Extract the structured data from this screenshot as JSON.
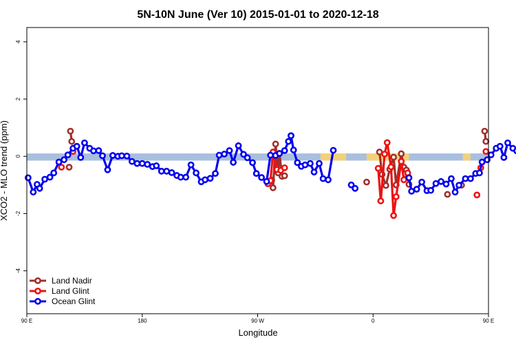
{
  "chart_data": {
    "type": "line",
    "title": "5N-10N June (Ver 10)   2015-01-01 to 2020-12-18",
    "xlabel": "Longitude",
    "ylabel": "XCO2 - MLO trend (ppm)",
    "xlim": [
      90,
      450
    ],
    "ylim": [
      -5.5,
      4.5
    ],
    "x_ticks": [
      {
        "value": 90,
        "label": "90 E"
      },
      {
        "value": 180,
        "label": "180"
      },
      {
        "value": 270,
        "label": "90 W"
      },
      {
        "value": 360,
        "label": "0"
      },
      {
        "value": 450,
        "label": "90 E"
      },
      {
        "value": 540,
        "label": "180"
      }
    ],
    "y_ticks": [
      {
        "value": -4,
        "label": "-4"
      },
      {
        "value": -2,
        "label": "-2"
      },
      {
        "value": 0,
        "label": "0"
      },
      {
        "value": 2,
        "label": "2"
      },
      {
        "value": 4,
        "label": "4"
      }
    ],
    "grid": false,
    "legend_position": "bottom-left",
    "band": {
      "ymin": -0.15,
      "ymax": 0.1,
      "color": "#a9bfdf",
      "highlight_color": "#ffd36b"
    },
    "series": [
      {
        "name": "Land Nadir",
        "color": "#a0302a",
        "segments": [
          [
            [
              123,
              -0.38
            ]
          ],
          [
            [
              124,
              0.88
            ],
            [
              125,
              0.52
            ]
          ],
          [
            [
              281,
              -0.83
            ],
            [
              282,
              -1.1
            ],
            [
              284,
              0.43
            ],
            [
              286,
              -0.58
            ],
            [
              287,
              0.1
            ],
            [
              289,
              -0.7
            ],
            [
              291,
              -0.68
            ]
          ],
          [
            [
              355,
              -0.9
            ]
          ],
          [
            [
              365,
              0.15
            ],
            [
              367,
              -0.63
            ],
            [
              370,
              -1.02
            ],
            [
              373,
              -0.45
            ],
            [
              376,
              -0.03
            ],
            [
              378,
              -1.0
            ],
            [
              382,
              0.09
            ],
            [
              384,
              -0.38
            ],
            [
              386,
              -0.48
            ],
            [
              388,
              -0.98
            ]
          ],
          [
            [
              418,
              -1.33
            ]
          ],
          [
            [
              429,
              -1.01
            ]
          ],
          [
            [
              447,
              0.88
            ],
            [
              448,
              0.52
            ]
          ]
        ]
      },
      {
        "name": "Land Glint",
        "color": "#ee1111",
        "segments": [
          [
            [
              117,
              -0.38
            ]
          ],
          [
            [
              126,
              0.17
            ]
          ],
          [
            [
              278,
              -0.96
            ],
            [
              280,
              -0.85
            ],
            [
              282,
              0.15
            ],
            [
              285,
              -0.46
            ],
            [
              288,
              -0.49
            ],
            [
              291,
              -0.4
            ]
          ],
          [
            [
              364,
              -0.42
            ],
            [
              366,
              -1.56
            ],
            [
              369,
              0.08
            ],
            [
              371,
              0.48
            ],
            [
              374,
              -0.37
            ],
            [
              376,
              -2.07
            ],
            [
              378,
              -1.41
            ],
            [
              382,
              -0.18
            ],
            [
              384,
              -0.82
            ],
            [
              387,
              -0.58
            ]
          ],
          [
            [
              441,
              -1.35
            ]
          ],
          [
            [
              444,
              -0.4
            ]
          ],
          [
            [
              448,
              0.17
            ]
          ]
        ]
      },
      {
        "name": "Ocean Glint",
        "color": "#0000ee",
        "segments": [
          [
            [
              91,
              -0.75
            ],
            [
              95,
              -1.25
            ],
            [
              98,
              -0.98
            ],
            [
              100,
              -1.12
            ],
            [
              104,
              -0.8
            ],
            [
              108,
              -0.73
            ],
            [
              111,
              -0.58
            ],
            [
              115,
              -0.2
            ],
            [
              119,
              -0.12
            ],
            [
              122,
              0.05
            ],
            [
              126,
              0.28
            ],
            [
              129,
              0.35
            ],
            [
              132,
              -0.04
            ],
            [
              135,
              0.47
            ],
            [
              139,
              0.28
            ],
            [
              142,
              0.19
            ],
            [
              146,
              0.2
            ],
            [
              149,
              0.02
            ],
            [
              153,
              -0.47
            ],
            [
              157,
              0.03
            ],
            [
              161,
              0.0
            ],
            [
              164,
              0.02
            ],
            [
              168,
              0.01
            ],
            [
              172,
              -0.18
            ],
            [
              176,
              -0.25
            ],
            [
              180,
              -0.25
            ],
            [
              184,
              -0.28
            ],
            [
              188,
              -0.36
            ],
            [
              191,
              -0.33
            ],
            [
              195,
              -0.52
            ],
            [
              199,
              -0.52
            ],
            [
              203,
              -0.57
            ],
            [
              207,
              -0.67
            ],
            [
              210,
              -0.73
            ],
            [
              214,
              -0.73
            ],
            [
              218,
              -0.3
            ],
            [
              222,
              -0.58
            ],
            [
              226,
              -0.89
            ],
            [
              229,
              -0.82
            ],
            [
              233,
              -0.77
            ],
            [
              237,
              -0.6
            ],
            [
              240,
              0.04
            ],
            [
              244,
              0.08
            ],
            [
              248,
              0.2
            ],
            [
              251,
              -0.21
            ],
            [
              255,
              0.37
            ],
            [
              259,
              0.07
            ],
            [
              262,
              -0.05
            ],
            [
              266,
              -0.22
            ],
            [
              269,
              -0.6
            ],
            [
              273,
              -0.74
            ],
            [
              277,
              -0.88
            ],
            [
              280,
              0.04
            ],
            [
              284,
              0.03
            ],
            [
              287,
              0.1
            ],
            [
              291,
              0.2
            ],
            [
              294,
              0.52
            ],
            [
              296,
              0.72
            ]
          ],
          [
            [
              296,
              0.72
            ],
            [
              298,
              0.22
            ],
            [
              301,
              -0.22
            ],
            [
              304,
              -0.35
            ],
            [
              307,
              -0.3
            ],
            [
              311,
              -0.25
            ],
            [
              314,
              -0.55
            ],
            [
              318,
              -0.25
            ],
            [
              321,
              -0.78
            ],
            [
              325,
              -0.82
            ],
            [
              329,
              0.21
            ]
          ],
          [
            [
              343,
              -1.0
            ],
            [
              346,
              -1.12
            ]
          ],
          [
            [
              388,
              -0.75
            ],
            [
              390,
              -1.22
            ],
            [
              394,
              -1.15
            ],
            [
              398,
              -0.9
            ],
            [
              402,
              -1.2
            ],
            [
              405,
              -1.19
            ],
            [
              409,
              -0.95
            ],
            [
              413,
              -0.88
            ],
            [
              417,
              -0.97
            ],
            [
              421,
              -0.78
            ],
            [
              424,
              -1.25
            ],
            [
              427,
              -1.01
            ],
            [
              432,
              -0.78
            ],
            [
              436,
              -0.78
            ],
            [
              440,
              -0.6
            ],
            [
              443,
              -0.58
            ],
            [
              445,
              -0.2
            ],
            [
              449,
              -0.12
            ],
            [
              452,
              0.05
            ],
            [
              456,
              0.28
            ],
            [
              459,
              0.35
            ],
            [
              462,
              -0.04
            ],
            [
              465,
              0.47
            ],
            [
              469,
              0.28
            ],
            [
              472,
              0.19
            ],
            [
              476,
              0.2
            ],
            [
              480,
              0.02
            ],
            [
              483,
              -0.47
            ],
            [
              487,
              0.03
            ]
          ]
        ]
      }
    ]
  }
}
